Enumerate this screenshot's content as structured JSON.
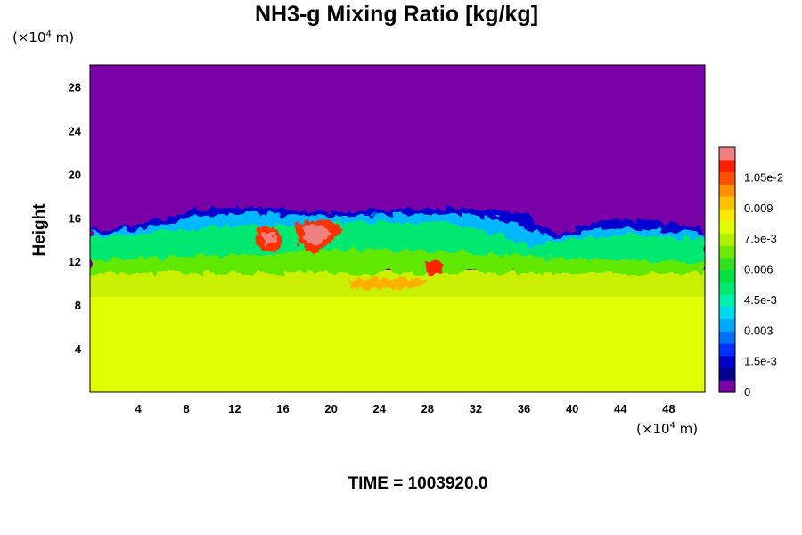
{
  "chart_data": {
    "type": "heatmap",
    "title": "NH3-g Mixing Ratio [kg/kg]",
    "xlabel": "",
    "ylabel": "Height",
    "x_unit_label": [
      "(×10",
      "4",
      " m)"
    ],
    "y_unit_label": [
      "(×10",
      "4",
      " m)"
    ],
    "xlim": [
      0,
      51
    ],
    "ylim": [
      0,
      30
    ],
    "x_ticks": [
      4,
      8,
      12,
      16,
      20,
      24,
      28,
      32,
      36,
      40,
      44,
      48
    ],
    "y_ticks": [
      4,
      8,
      12,
      16,
      20,
      24,
      28
    ],
    "colorbar": {
      "range": [
        0,
        0.012
      ],
      "tick_values": [
        0,
        0.0015,
        0.003,
        0.0045,
        0.006,
        0.0075,
        0.009,
        0.0105
      ],
      "tick_labels": [
        "0",
        "1.5e-3",
        "0.003",
        "4.5e-3",
        "0.006",
        "7.5e-3",
        "0.009",
        "1.05e-2"
      ],
      "colors": [
        "#7a00a8",
        "#000090",
        "#0000c8",
        "#0030ff",
        "#0070ff",
        "#00a8ff",
        "#00d8f0",
        "#00f0b0",
        "#00e870",
        "#00e040",
        "#30e020",
        "#70e800",
        "#b0f000",
        "#e0ff00",
        "#ffe800",
        "#ffc000",
        "#ff9000",
        "#ff5000",
        "#ff2000",
        "#f08080"
      ]
    },
    "field_summary": [
      {
        "region": "upper layer",
        "height_range": [
          15,
          30
        ],
        "value": 0
      },
      {
        "region": "mixing layer",
        "height_range": [
          11,
          15
        ],
        "value": 0.0055
      },
      {
        "region": "transition band",
        "height_range": [
          9,
          11
        ],
        "value": 0.0078
      },
      {
        "region": "lower layer",
        "height_range": [
          0,
          9
        ],
        "value": 0.0083
      },
      {
        "region": "local maxima",
        "x_ranges": [
          [
            14.5,
            15.5
          ],
          [
            17.5,
            19.5
          ],
          [
            28.5,
            29.5
          ]
        ],
        "height_range": [
          11.5,
          15
        ],
        "value": 0.011
      }
    ],
    "grid": false,
    "legend": "colorbar-right"
  },
  "footer": {
    "time_text": "TIME = 1003920.0"
  }
}
